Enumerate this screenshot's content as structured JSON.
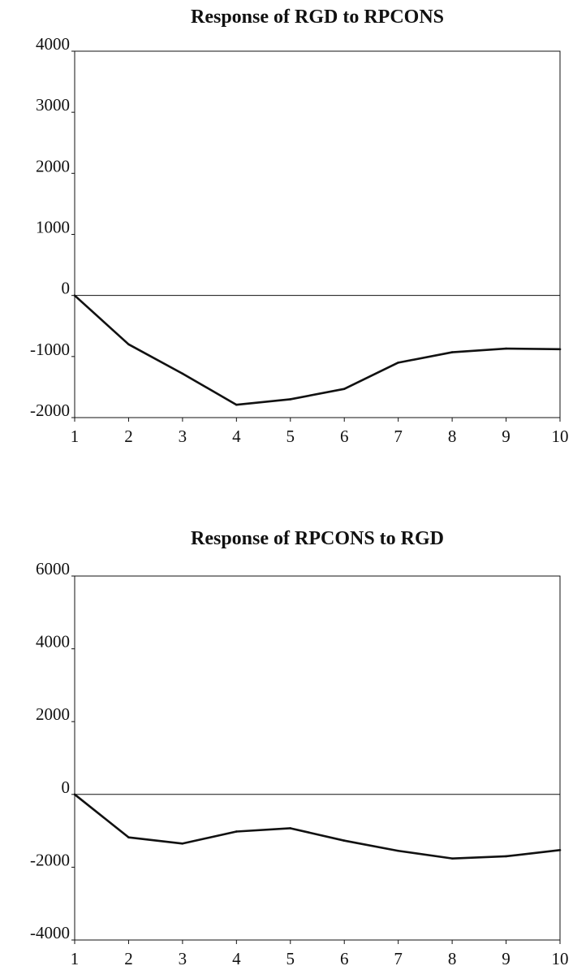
{
  "chart_data": [
    {
      "type": "line",
      "title": "Response of RGD to RPCONS",
      "xlabel": "",
      "ylabel": "",
      "x": [
        1,
        2,
        3,
        4,
        5,
        6,
        7,
        8,
        9,
        10
      ],
      "x_tick_labels": [
        "1",
        "2",
        "3",
        "4",
        "5",
        "6",
        "7",
        "8",
        "9",
        "10"
      ],
      "y_tick_values": [
        4000,
        3000,
        2000,
        1000,
        0,
        -1000,
        -2000
      ],
      "y_tick_labels": [
        "4000",
        "3000",
        "2000",
        "1000",
        "0",
        "-1000",
        "-2000"
      ],
      "ylim": [
        -2000,
        4000
      ],
      "xlim": [
        1,
        10
      ],
      "zero_line": true,
      "grid": false,
      "series": [
        {
          "values": [
            0,
            -800,
            -1280,
            -1790,
            -1700,
            -1530,
            -1100,
            -930,
            -870,
            -880
          ]
        }
      ]
    },
    {
      "type": "line",
      "title": "Response of RPCONS to RGD",
      "xlabel": "",
      "ylabel": "",
      "x": [
        1,
        2,
        3,
        4,
        5,
        6,
        7,
        8,
        9,
        10
      ],
      "x_tick_labels": [
        "1",
        "2",
        "3",
        "4",
        "5",
        "6",
        "7",
        "8",
        "9",
        "10"
      ],
      "y_tick_values": [
        6000,
        4000,
        2000,
        0,
        -2000,
        -4000
      ],
      "y_tick_labels": [
        "6000",
        "4000",
        "2000",
        "0",
        "-2000",
        "-4000"
      ],
      "ylim": [
        -4000,
        6000
      ],
      "xlim": [
        1,
        10
      ],
      "zero_line": true,
      "grid": false,
      "series": [
        {
          "values": [
            0,
            -1180,
            -1350,
            -1020,
            -930,
            -1270,
            -1550,
            -1760,
            -1700,
            -1530
          ]
        }
      ]
    }
  ]
}
